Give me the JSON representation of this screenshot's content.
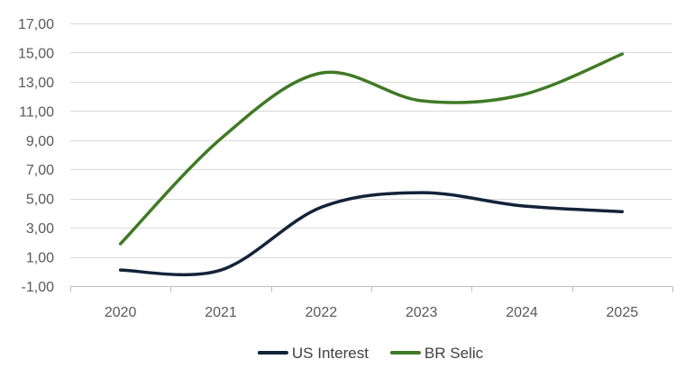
{
  "chart_data": {
    "type": "line",
    "title": "",
    "xlabel": "",
    "ylabel": "",
    "categories": [
      "2020",
      "2021",
      "2022",
      "2023",
      "2024",
      "2025"
    ],
    "y_tick_labels": [
      "17,00",
      "15,00",
      "13,00",
      "11,00",
      "9,00",
      "7,00",
      "5,00",
      "3,00",
      "1,00",
      "-1,00"
    ],
    "y_ticks": [
      17,
      15,
      13,
      11,
      9,
      7,
      5,
      3,
      1,
      -1
    ],
    "ylim": [
      -1,
      17
    ],
    "grid": true,
    "legend_position": "bottom",
    "smooth": true,
    "series": [
      {
        "name": "US Interest",
        "color": "#13233a",
        "values": [
          0.1,
          0.1,
          4.4,
          5.4,
          4.5,
          4.1
        ]
      },
      {
        "name": "BR Selic",
        "color": "#3f7a25",
        "values": [
          1.9,
          9.1,
          13.6,
          11.7,
          12.1,
          14.9
        ]
      }
    ]
  }
}
